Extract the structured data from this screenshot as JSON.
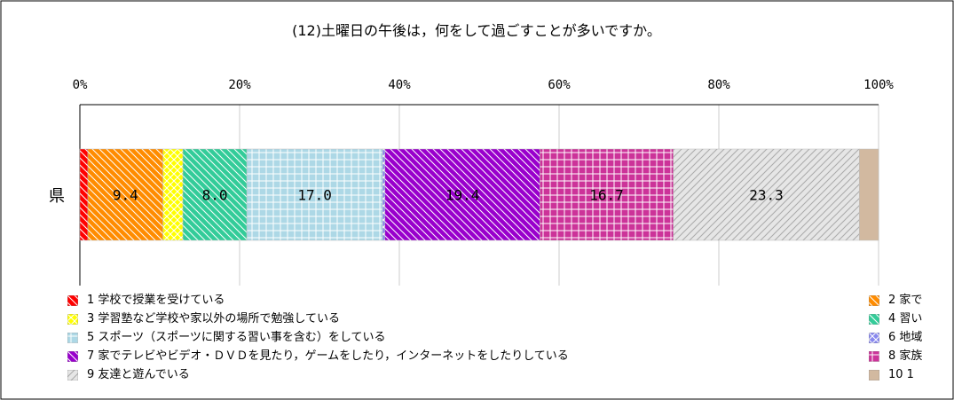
{
  "chart_data": {
    "type": "bar",
    "orientation": "horizontal",
    "stacked": true,
    "title": "(12)土曜日の午後は，何をして過ごすことが多いですか。",
    "categories": [
      "県"
    ],
    "xlim": [
      0,
      100
    ],
    "x_ticks": [
      "0%",
      "20%",
      "40%",
      "60%",
      "80%",
      "100%"
    ],
    "x_tick_values": [
      0,
      20,
      40,
      60,
      80,
      100
    ],
    "grid": true,
    "legend_placement": "bottom",
    "series": [
      {
        "name": "1 学校で授業を受けている",
        "value": 1.0,
        "label": "",
        "color": "#ff0000",
        "pattern": "diag-down"
      },
      {
        "name": "2 家で",
        "value": 9.4,
        "label": "9.4",
        "color": "#ff8c00",
        "pattern": "diag-down"
      },
      {
        "name": "3 学習塾など学校や家以外の場所で勉強している",
        "value": 2.5,
        "label": "",
        "color": "#ffff00",
        "pattern": "cross"
      },
      {
        "name": "4 習い",
        "value": 8.0,
        "label": "8.0",
        "color": "#33cc99",
        "pattern": "diag-down"
      },
      {
        "name": "5 スポーツ（スポーツに関する習い事を含む）をしている",
        "value": 17.0,
        "label": "17.0",
        "color": "#add8e6",
        "pattern": "grid"
      },
      {
        "name": "6 地域",
        "value": 0.3,
        "label": "",
        "color": "#8888ee",
        "pattern": "cross"
      },
      {
        "name": "7 家でテレビやビデオ・ＤＶＤを見たり，ゲームをしたり，インターネットをしたりしている",
        "value": 19.4,
        "label": "19.4",
        "color": "#9900cc",
        "pattern": "diag-down"
      },
      {
        "name": "8 家族",
        "value": 16.7,
        "label": "16.7",
        "color": "#cc3399",
        "pattern": "grid"
      },
      {
        "name": "9 友達と遊んでいる",
        "value": 23.3,
        "label": "23.3",
        "color": "#e6e6e6",
        "pattern": "diag-up"
      },
      {
        "name": "10 1",
        "value": 2.4,
        "label": "",
        "color": "#d2b9a0",
        "pattern": "solid"
      }
    ]
  }
}
